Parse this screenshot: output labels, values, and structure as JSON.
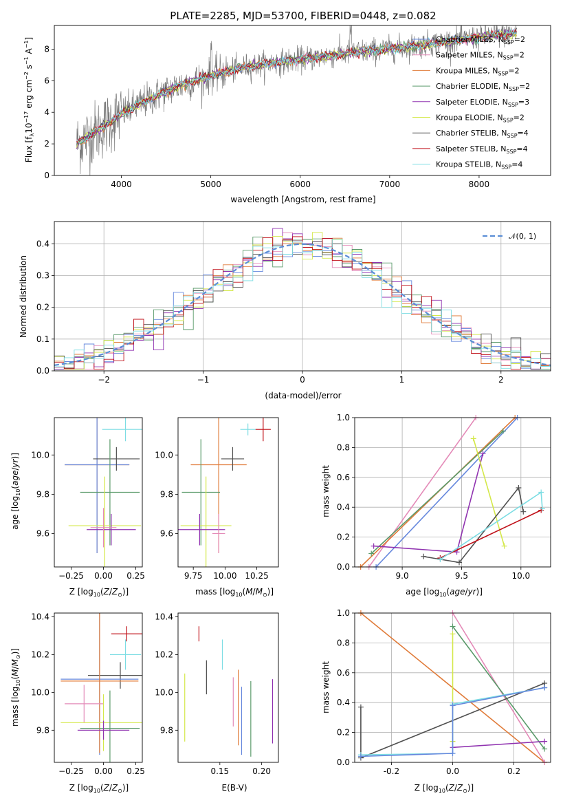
{
  "colors": {
    "Chabrier MILES": "#6688dd",
    "Salpeter MILES": "#e48ab8",
    "Kroupa MILES": "#e07b39",
    "Chabrier ELODIE": "#5a9a6a",
    "Salpeter ELODIE": "#9033b0",
    "Kroupa ELODIE": "#d4e84a",
    "Chabrier STELIB": "#505050",
    "Salpeter STELIB": "#c0121a",
    "Kroupa STELIB": "#7cdde3"
  },
  "chart_data": [
    {
      "id": "spectrum",
      "type": "line",
      "title": "PLATE=2285, MJD=53700, FIBERID=0448, z=0.082",
      "xlabel": "wavelength [Angstrom, rest frame]",
      "ylabel": "Flux [f",
      "xlim": [
        3250,
        8800
      ],
      "ylim": [
        0,
        9.5
      ],
      "xticks": [
        4000,
        5000,
        6000,
        7000,
        8000
      ],
      "yticks": [
        0,
        2,
        4,
        6,
        8
      ],
      "grid": false,
      "legend_position": "right",
      "legend": [
        {
          "name": "Chabrier MILES",
          "nssp": "2"
        },
        {
          "name": "Salpeter MILES",
          "nssp": "2"
        },
        {
          "name": "Kroupa MILES",
          "nssp": "2"
        },
        {
          "name": "Chabrier ELODIE",
          "nssp": "2"
        },
        {
          "name": "Salpeter ELODIE",
          "nssp": "3"
        },
        {
          "name": "Kroupa ELODIE",
          "nssp": "2"
        },
        {
          "name": "Chabrier STELIB",
          "nssp": "4"
        },
        {
          "name": "Salpeter STELIB",
          "nssp": "4"
        },
        {
          "name": "Kroupa STELIB",
          "nssp": "4"
        }
      ],
      "continuum": {
        "x": [
          3500,
          3800,
          4000,
          4300,
          4600,
          5000,
          5400,
          5800,
          6200,
          6600,
          7000,
          7400,
          7800,
          8200,
          8400
        ],
        "y": [
          2.0,
          3.1,
          3.9,
          4.8,
          5.6,
          6.3,
          6.9,
          7.2,
          7.5,
          7.8,
          8.0,
          8.3,
          8.6,
          8.9,
          9.0
        ]
      }
    },
    {
      "id": "residuals",
      "type": "line",
      "xlabel": "(data-model)/error",
      "ylabel": "Normed distribution",
      "xlim": [
        -2.5,
        2.5
      ],
      "ylim": [
        0,
        0.47
      ],
      "xticks": [
        -2,
        -1,
        0,
        1,
        2
      ],
      "yticks": [
        0.0,
        0.1,
        0.2,
        0.3,
        0.4
      ],
      "grid": true,
      "legend_position": "upper right",
      "legend_label": "𝒩(0, 1)"
    },
    {
      "id": "age_vs_Z",
      "type": "scatter",
      "xlabel": "Z [log",
      "ylabel": "age  [log",
      "xlim": [
        -0.38,
        0.3
      ],
      "ylim": [
        9.43,
        10.19
      ],
      "xticks": [
        -0.25,
        0.0,
        0.25
      ],
      "yticks": [
        9.6,
        9.8,
        10.0
      ],
      "points": [
        {
          "model": "Kroupa MILES",
          "x": -0.05,
          "xerr": 0.25,
          "y": 9.95,
          "yerr": 0.45
        },
        {
          "model": "Chabrier MILES",
          "x": -0.05,
          "xerr": 0.25,
          "y": 9.95,
          "yerr": 0.45
        },
        {
          "model": "Chabrier STELIB",
          "x": 0.1,
          "xerr": 0.18,
          "y": 9.98,
          "yerr": 0.06
        },
        {
          "model": "Kroupa STELIB",
          "x": 0.17,
          "xerr": 0.18,
          "y": 10.13,
          "yerr": 0.06
        },
        {
          "model": "Chabrier ELODIE",
          "x": 0.05,
          "xerr": 0.23,
          "y": 9.81,
          "yerr": 0.27
        },
        {
          "model": "Kroupa ELODIE",
          "x": 0.01,
          "xerr": 0.28,
          "y": 9.64,
          "yerr": 0.25
        },
        {
          "model": "Salpeter ELODIE",
          "x": 0.06,
          "xerr": 0.19,
          "y": 9.62,
          "yerr": 0.08
        },
        {
          "model": "Salpeter MILES",
          "x": 0.0,
          "xerr": 0.1,
          "y": 9.63,
          "yerr": 0.1
        }
      ]
    },
    {
      "id": "age_vs_mass",
      "type": "scatter",
      "xlabel": "mass [log",
      "xlim": [
        9.63,
        10.42
      ],
      "ylim": [
        9.43,
        10.19
      ],
      "xticks": [
        9.75,
        10.0,
        10.25
      ],
      "yticks": [
        9.6,
        9.8,
        10.0
      ],
      "points": [
        {
          "model": "Kroupa MILES",
          "x": 9.95,
          "xerr": 0.22,
          "y": 9.95,
          "yerr": 0.45
        },
        {
          "model": "Chabrier STELIB",
          "x": 10.06,
          "xerr": 0.09,
          "y": 9.98,
          "yerr": 0.06
        },
        {
          "model": "Kroupa STELIB",
          "x": 10.18,
          "xerr": 0.06,
          "y": 10.13,
          "yerr": 0.03
        },
        {
          "model": "Salpeter STELIB",
          "x": 10.3,
          "xerr": 0.06,
          "y": 10.13,
          "yerr": 0.06
        },
        {
          "model": "Chabrier ELODIE",
          "x": 9.81,
          "xerr": 0.15,
          "y": 9.81,
          "yerr": 0.27
        },
        {
          "model": "Kroupa ELODIE",
          "x": 9.85,
          "xerr": 0.2,
          "y": 9.64,
          "yerr": 0.25
        },
        {
          "model": "Salpeter ELODIE",
          "x": 9.8,
          "xerr": 0.2,
          "y": 9.62,
          "yerr": 0.08
        },
        {
          "model": "Salpeter MILES",
          "x": 9.95,
          "xerr": 0.05,
          "y": 9.6,
          "yerr": 0.1
        }
      ]
    },
    {
      "id": "weight_vs_age",
      "type": "line",
      "xlabel": "age  [log",
      "ylabel": "mass weight",
      "xlim": [
        8.6,
        10.25
      ],
      "ylim": [
        0,
        1.0
      ],
      "xticks": [
        9.0,
        9.5,
        10.0
      ],
      "yticks": [
        0.0,
        0.2,
        0.4,
        0.6,
        0.8,
        1.0
      ],
      "grid": true,
      "series": [
        {
          "model": "Salpeter MILES",
          "x": [
            8.72,
            9.62
          ],
          "y": [
            0.0,
            1.0
          ]
        },
        {
          "model": "Kroupa MILES",
          "x": [
            8.65,
            9.95
          ],
          "y": [
            0.0,
            1.0
          ]
        },
        {
          "model": "Chabrier MILES",
          "x": [
            8.78,
            9.97
          ],
          "y": [
            0.0,
            1.0
          ]
        },
        {
          "model": "Chabrier ELODIE",
          "x": [
            8.74,
            9.85
          ],
          "y": [
            0.09,
            0.91
          ]
        },
        {
          "model": "Salpeter ELODIE",
          "x": [
            8.76,
            9.46,
            9.68
          ],
          "y": [
            0.14,
            0.1,
            0.76
          ]
        },
        {
          "model": "Kroupa ELODIE",
          "x": [
            9.6,
            9.86
          ],
          "y": [
            0.86,
            0.14
          ]
        },
        {
          "model": "Chabrier STELIB",
          "x": [
            9.18,
            9.48,
            9.98,
            10.02
          ],
          "y": [
            0.07,
            0.03,
            0.53,
            0.37
          ]
        },
        {
          "model": "Salpeter STELIB",
          "x": [
            9.32,
            10.17
          ],
          "y": [
            0.06,
            0.38
          ]
        },
        {
          "model": "Kroupa STELIB",
          "x": [
            9.32,
            10.17,
            10.18
          ],
          "y": [
            0.05,
            0.5,
            0.39
          ]
        }
      ]
    },
    {
      "id": "mass_vs_Z",
      "type": "scatter",
      "xlabel": "Z [log",
      "ylabel": "mass [log",
      "xlim": [
        -0.38,
        0.3
      ],
      "ylim": [
        9.63,
        10.42
      ],
      "xticks": [
        -0.25,
        0.0,
        0.25
      ],
      "yticks": [
        9.8,
        10.0,
        10.2,
        10.4
      ],
      "points": [
        {
          "model": "Salpeter STELIB",
          "x": 0.18,
          "xerr": 0.12,
          "y": 10.31,
          "yerr": 0.04
        },
        {
          "model": "Kroupa STELIB",
          "x": 0.17,
          "xerr": 0.12,
          "y": 10.2,
          "yerr": 0.08
        },
        {
          "model": "Chabrier STELIB",
          "x": 0.13,
          "xerr": 0.25,
          "y": 10.09,
          "yerr": 0.07
        },
        {
          "model": "Chabrier MILES",
          "x": -0.03,
          "xerr": 0.3,
          "y": 10.07,
          "yerr": 0.4
        },
        {
          "model": "Kroupa MILES",
          "x": -0.03,
          "xerr": 0.3,
          "y": 10.06,
          "yerr": 0.38
        },
        {
          "model": "Salpeter MILES",
          "x": -0.15,
          "xerr": 0.15,
          "y": 9.94,
          "yerr": 0.1
        },
        {
          "model": "Kroupa ELODIE",
          "x": 0.0,
          "xerr": 0.33,
          "y": 9.84,
          "yerr": 0.15
        },
        {
          "model": "Chabrier ELODIE",
          "x": 0.05,
          "xerr": 0.23,
          "y": 9.81,
          "yerr": 0.2
        },
        {
          "model": "Salpeter ELODIE",
          "x": 0.0,
          "xerr": 0.2,
          "y": 9.8,
          "yerr": 0.05
        }
      ]
    },
    {
      "id": "mass_vs_ebv",
      "type": "scatter",
      "xlabel": "E(B-V)",
      "xlim": [
        0.1,
        0.22
      ],
      "ylim": [
        9.63,
        10.42
      ],
      "xticks": [
        0.15,
        0.2
      ],
      "yticks": [
        9.8,
        10.0,
        10.2,
        10.4
      ],
      "points": [
        {
          "model": "Salpeter STELIB",
          "x": 0.125,
          "y": 10.31,
          "yerr": 0.04
        },
        {
          "model": "Kroupa STELIB",
          "x": 0.153,
          "y": 10.2,
          "yerr": 0.08
        },
        {
          "model": "Chabrier STELIB",
          "x": 0.134,
          "y": 10.08,
          "yerr": 0.09
        },
        {
          "model": "Kroupa ELODIE",
          "x": 0.108,
          "y": 9.92,
          "yerr": 0.18
        },
        {
          "model": "Salpeter MILES",
          "x": 0.166,
          "y": 9.95,
          "yerr": 0.13
        },
        {
          "model": "Kroupa MILES",
          "x": 0.172,
          "y": 9.92,
          "yerr": 0.2
        },
        {
          "model": "Chabrier ELODIE",
          "x": 0.187,
          "y": 9.86,
          "yerr": 0.2
        },
        {
          "model": "Salpeter ELODIE",
          "x": 0.213,
          "y": 9.9,
          "yerr": 0.17
        },
        {
          "model": "Chabrier MILES",
          "x": 0.176,
          "y": 9.85,
          "yerr": 0.18
        }
      ]
    },
    {
      "id": "weight_vs_Z",
      "type": "line",
      "xlabel": "Z [log",
      "ylabel": "mass weight",
      "xlim": [
        -0.32,
        0.32
      ],
      "ylim": [
        0,
        1.0
      ],
      "xticks": [
        -0.2,
        0.0,
        0.2
      ],
      "yticks": [
        0.0,
        0.2,
        0.4,
        0.6,
        0.8,
        1.0
      ],
      "grid": true,
      "series": [
        {
          "model": "Kroupa MILES",
          "x": [
            -0.3,
            0.3
          ],
          "y": [
            1.0,
            0.0
          ]
        },
        {
          "model": "Salpeter MILES",
          "x": [
            0.0,
            0.3
          ],
          "y": [
            1.0,
            0.0
          ]
        },
        {
          "model": "Chabrier ELODIE",
          "x": [
            0.0,
            0.3
          ],
          "y": [
            0.91,
            0.09
          ]
        },
        {
          "model": "Kroupa ELODIE",
          "x": [
            0.0,
            0.0
          ],
          "y": [
            0.86,
            0.14
          ]
        },
        {
          "model": "Salpeter ELODIE",
          "x": [
            0.0,
            0.3
          ],
          "y": [
            0.1,
            0.14
          ]
        },
        {
          "model": "Chabrier STELIB",
          "x": [
            -0.3,
            -0.3,
            0.3,
            0.3
          ],
          "y": [
            0.37,
            0.03,
            0.53,
            0.5
          ]
        },
        {
          "model": "Kroupa STELIB",
          "x": [
            -0.3,
            0.0,
            0.0,
            0.3
          ],
          "y": [
            0.05,
            0.06,
            0.39,
            0.5
          ]
        },
        {
          "model": "Chabrier MILES",
          "x": [
            -0.3,
            0.0,
            0.0,
            0.3
          ],
          "y": [
            0.04,
            0.06,
            0.38,
            0.5
          ]
        }
      ]
    }
  ]
}
